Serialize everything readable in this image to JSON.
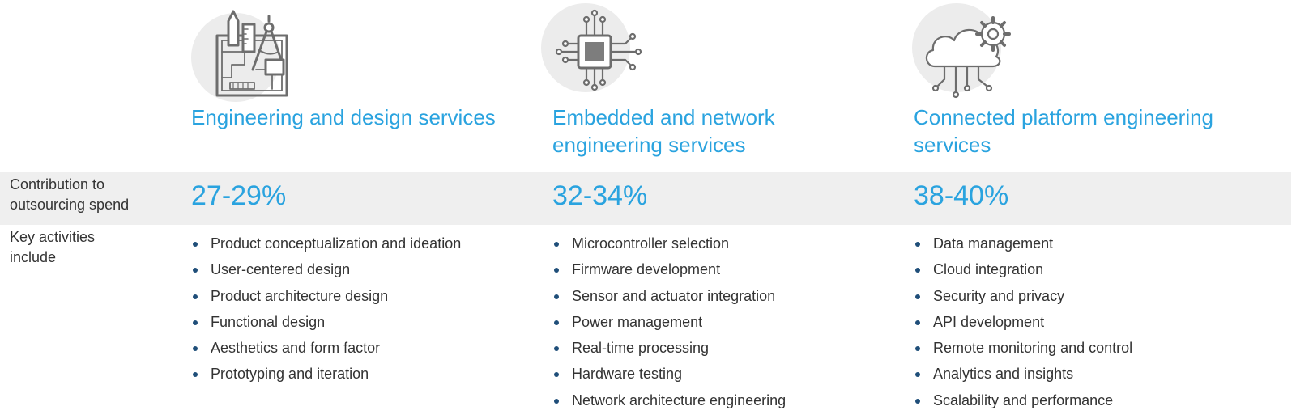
{
  "row_labels": {
    "contribution": "Contribution to outsourcing spend",
    "activities": "Key activities include"
  },
  "columns": [
    {
      "icon": "engineering-design-icon",
      "title": "Engineering and design services",
      "percent": "27-29%",
      "activities": [
        "Product conceptualization and ideation",
        "User-centered design",
        "Product architecture design",
        "Functional design",
        "Aesthetics and form factor",
        "Prototyping and iteration"
      ]
    },
    {
      "icon": "microchip-icon",
      "title": "Embedded and network engineering services",
      "percent": "32-34%",
      "activities": [
        "Microcontroller selection",
        "Firmware development",
        "Sensor and actuator integration",
        "Power management",
        "Real-time processing",
        "Hardware testing",
        "Network architecture engineering"
      ]
    },
    {
      "icon": "cloud-gear-icon",
      "title": "Connected platform engineering services",
      "percent": "38-40%",
      "activities": [
        "Data management",
        "Cloud integration",
        "Security and privacy",
        "API development",
        "Remote monitoring and control",
        "Analytics and insights",
        "Scalability and performance"
      ]
    }
  ],
  "colors": {
    "accent": "#2aa3df",
    "bullet": "#1f4e79",
    "band": "#efefef",
    "icon_circle": "#ececec",
    "icon_stroke": "#6d6d6d"
  }
}
